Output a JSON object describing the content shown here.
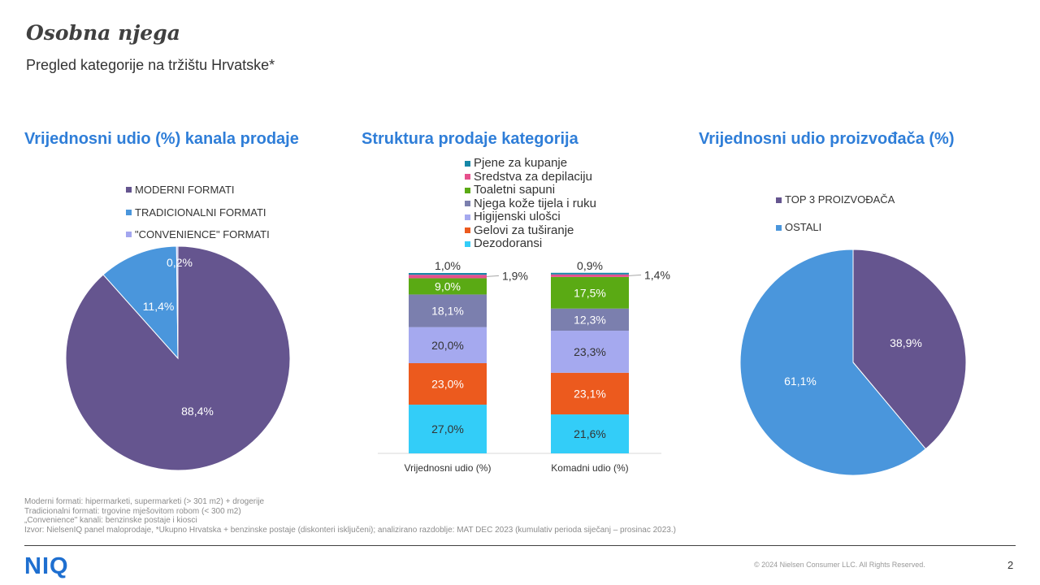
{
  "header": {
    "title": "Osobna njega",
    "subtitle": "Pregled kategorije na tržištu Hrvatske*"
  },
  "sections": {
    "channel_title": "Vrijednosni  udio (%) kanala prodaje",
    "structure_title": "Struktura prodaje kategorija",
    "manufacturer_title": "Vrijednosni  udio proizvođača (%)"
  },
  "colors": {
    "accent": "#2f7ed8",
    "purple": "#65558f",
    "blue": "#4a96dc",
    "light_purple": "#a3a6ef",
    "teal": "#1687a7",
    "pink": "#e6508c",
    "green": "#5aaa14",
    "slate": "#7b7fae",
    "lavender": "#a5a9ef",
    "orange": "#ec5a1e",
    "cyan": "#33cdf8"
  },
  "chart_data": [
    {
      "type": "pie",
      "title": "Vrijednosni  udio (%) kanala prodaje",
      "slices": [
        {
          "name": "MODERNI FORMATI",
          "value": 88.4,
          "label": "88,4%",
          "color": "#65558f"
        },
        {
          "name": "TRADICIONALNI FORMATI",
          "value": 11.4,
          "label": "11,4%",
          "color": "#4a96dc"
        },
        {
          "name": "\"CONVENIENCE\" FORMATI",
          "value": 0.2,
          "label": "0,2%",
          "color": "#a3a6ef"
        }
      ]
    },
    {
      "type": "bar",
      "stacked": true,
      "title": "Struktura prodaje kategorija",
      "categories": [
        "Vrijednosni udio (%)",
        "Komadni udio (%)"
      ],
      "series": [
        {
          "name": "Dezodoransi",
          "values": [
            27.0,
            21.6
          ],
          "labels": [
            "27,0%",
            "21,6%"
          ],
          "color": "#33cdf8"
        },
        {
          "name": "Gelovi za tuširanje",
          "values": [
            23.0,
            23.1
          ],
          "labels": [
            "23,0%",
            "23,1%"
          ],
          "color": "#ec5a1e"
        },
        {
          "name": "Higijenski ulošci",
          "values": [
            20.0,
            23.3
          ],
          "labels": [
            "20,0%",
            "23,3%"
          ],
          "color": "#a5a9ef"
        },
        {
          "name": "Njega kože tijela i ruku",
          "values": [
            18.1,
            12.3
          ],
          "labels": [
            "18,1%",
            "12,3%"
          ],
          "color": "#7b7fae"
        },
        {
          "name": "Toaletni sapuni",
          "values": [
            9.0,
            17.5
          ],
          "labels": [
            "9,0%",
            "17,5%"
          ],
          "color": "#5aaa14"
        },
        {
          "name": "Sredstva za depilaciju",
          "values": [
            1.9,
            1.4
          ],
          "labels": [
            "1,9%",
            "1,4%"
          ],
          "color": "#e6508c"
        },
        {
          "name": "Pjene za kupanje",
          "values": [
            1.0,
            0.9
          ],
          "labels": [
            "1,0%",
            "0,9%"
          ],
          "color": "#1687a7"
        }
      ]
    },
    {
      "type": "pie",
      "title": "Vrijednosni  udio proizvođača (%)",
      "slices": [
        {
          "name": "TOP 3 PROIZVOĐAČA",
          "value": 38.9,
          "label": "38,9%",
          "color": "#65558f"
        },
        {
          "name": "OSTALI",
          "value": 61.1,
          "label": "61,1%",
          "color": "#4a96dc"
        }
      ]
    }
  ],
  "footer": {
    "notes": [
      "Moderni formati: hipermarketi, supermarketi (> 301 m2) + drogerije",
      "Tradicionalni formati: trgovine mješovitom robom (< 300 m2)",
      "„Convenience\" kanali: benzinske postaje i kiosci",
      "Izvor: NielsenIQ panel maloprodaje, *Ukupno Hrvatska + benzinske postaje (diskonteri isključeni); analizirano razdoblje: MAT DEC 2023 (kumulativ perioda siječanj – prosinac 2023.)"
    ],
    "logo": "NIQ",
    "copyright": "© 2024 Nielsen Consumer LLC. All Rights Reserved.",
    "page_number": "2"
  }
}
